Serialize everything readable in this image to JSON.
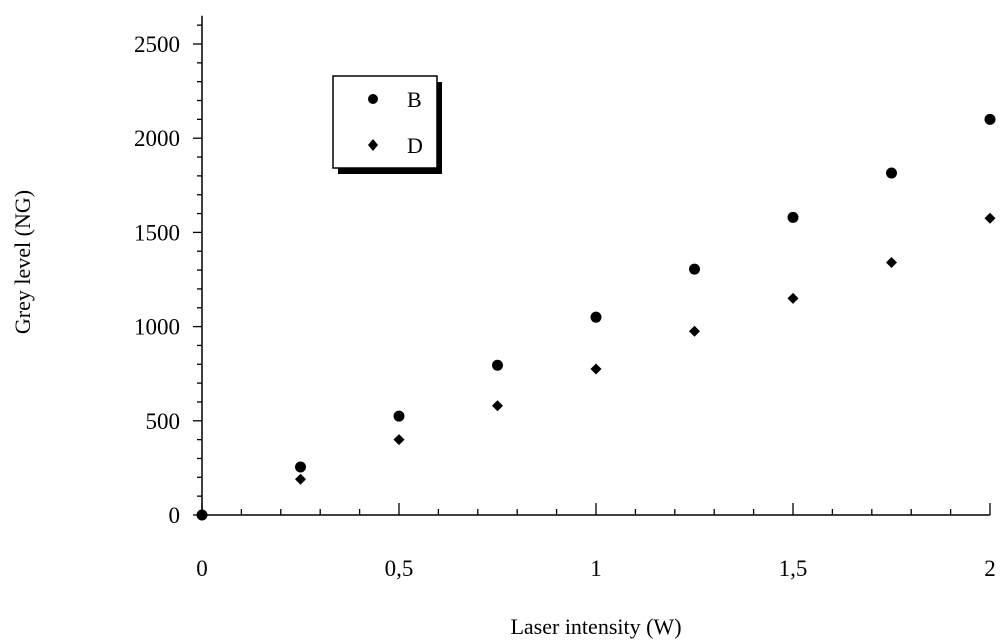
{
  "chart_data": {
    "type": "scatter",
    "title": "",
    "xlabel": "Laser intensity (W)",
    "ylabel": "Grey level (NG)",
    "xlim": [
      0,
      2
    ],
    "ylim": [
      0,
      2650
    ],
    "x_ticks": [
      0,
      0.5,
      1,
      1.5,
      2
    ],
    "x_tick_labels": [
      "0",
      "0,5",
      "1",
      "1,5",
      "2"
    ],
    "y_ticks": [
      0,
      500,
      1000,
      1500,
      2000,
      2500
    ],
    "y_tick_labels": [
      "0",
      "500",
      "1000",
      "1500",
      "2000",
      "2500"
    ],
    "grid": false,
    "legend_position": "top-left",
    "series": [
      {
        "name": "B",
        "marker": "circle",
        "color": "#000000",
        "x": [
          0,
          0.25,
          0.5,
          0.75,
          1,
          1.25,
          1.5,
          1.75,
          2
        ],
        "y": [
          0,
          255,
          525,
          795,
          1050,
          1305,
          1580,
          1815,
          2100
        ]
      },
      {
        "name": "D",
        "marker": "diamond",
        "color": "#000000",
        "x": [
          0,
          0.25,
          0.5,
          0.75,
          1,
          1.25,
          1.5,
          1.75,
          2
        ],
        "y": [
          0,
          190,
          400,
          580,
          775,
          975,
          1150,
          1340,
          1575
        ]
      }
    ]
  }
}
